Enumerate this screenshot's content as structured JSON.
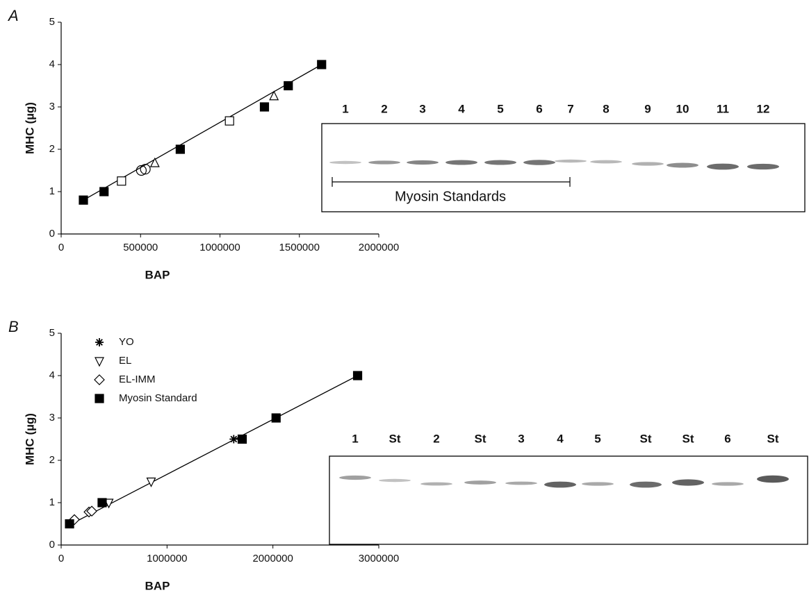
{
  "chart_data": [
    {
      "type": "scatter",
      "panel": "A",
      "xlabel": "BAP",
      "ylabel": "MHC (µg)",
      "xlim": [
        0,
        2000000
      ],
      "ylim": [
        0,
        5
      ],
      "xticks": [
        0,
        500000,
        1000000,
        1500000,
        2000000
      ],
      "yticks": [
        0,
        1,
        2,
        3,
        4,
        5
      ],
      "series": [
        {
          "marker": "filled-square",
          "color": "#000000",
          "x": [
            140000,
            270000,
            750000,
            1280000,
            1430000,
            1640000
          ],
          "values": [
            0.8,
            1.0,
            2.0,
            3.0,
            3.5,
            4.0
          ]
        },
        {
          "marker": "open-square",
          "color": "#000000",
          "x": [
            380000,
            1060000
          ],
          "values": [
            1.25,
            2.67
          ]
        },
        {
          "marker": "open-circle",
          "color": "#000000",
          "x": [
            505000,
            530000
          ],
          "values": [
            1.5,
            1.53
          ]
        },
        {
          "marker": "open-triangle",
          "color": "#000000",
          "x": [
            590000,
            1340000
          ],
          "values": [
            1.67,
            3.25
          ]
        }
      ],
      "trendline": {
        "x": [
          140000,
          1640000
        ],
        "y": [
          0.8,
          4.0
        ]
      },
      "gel": {
        "lanes": [
          "1",
          "2",
          "3",
          "4",
          "5",
          "6",
          "7",
          "8",
          "9",
          "10",
          "11",
          "12"
        ],
        "annotation": "Myosin Standards"
      }
    },
    {
      "type": "scatter",
      "panel": "B",
      "xlabel": "BAP",
      "ylabel": "MHC (µg)",
      "xlim": [
        0,
        3000000
      ],
      "ylim": [
        0,
        5
      ],
      "xticks": [
        0,
        1000000,
        2000000,
        3000000
      ],
      "yticks": [
        0,
        1,
        2,
        3,
        4,
        5
      ],
      "series": [
        {
          "name": "YO",
          "marker": "asterisk",
          "color": "#000000",
          "x": [
            1630000
          ],
          "values": [
            2.5
          ]
        },
        {
          "name": "EL",
          "marker": "open-triangle-down",
          "color": "#000000",
          "x": [
            450000,
            850000
          ],
          "values": [
            1.0,
            1.5
          ]
        },
        {
          "name": "EL-IMM",
          "marker": "open-diamond",
          "color": "#000000",
          "x": [
            125000,
            263000,
            289000
          ],
          "values": [
            0.6,
            0.78,
            0.8
          ]
        },
        {
          "name": "Myosin Standard",
          "marker": "filled-square",
          "color": "#000000",
          "x": [
            79000,
            387000,
            1710000,
            2030000,
            2800000
          ],
          "values": [
            0.5,
            1.0,
            2.5,
            3.0,
            4.0
          ]
        }
      ],
      "trendline": {
        "x": [
          60000,
          2800000
        ],
        "y": [
          0.45,
          4.0
        ]
      },
      "gel": {
        "lanes": [
          "1",
          "St",
          "2",
          "St",
          "3",
          "4",
          "5",
          "St",
          "St",
          "6",
          "St"
        ]
      }
    }
  ]
}
